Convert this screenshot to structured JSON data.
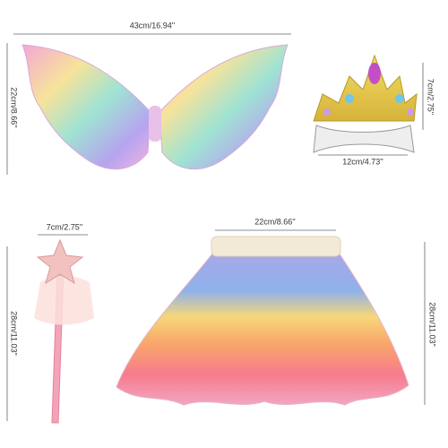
{
  "dimensions": {
    "wings_width": "43cm/16.94''",
    "wings_height": "22cm/8.66''",
    "crown_height": "7cm/2.75''",
    "crown_width": "12cm/4.73''",
    "wand_width": "7cm/2.75''",
    "wand_height": "28cm/11.03''",
    "skirt_width": "22cm/8.66''",
    "skirt_height": "28cm/11.03''"
  }
}
